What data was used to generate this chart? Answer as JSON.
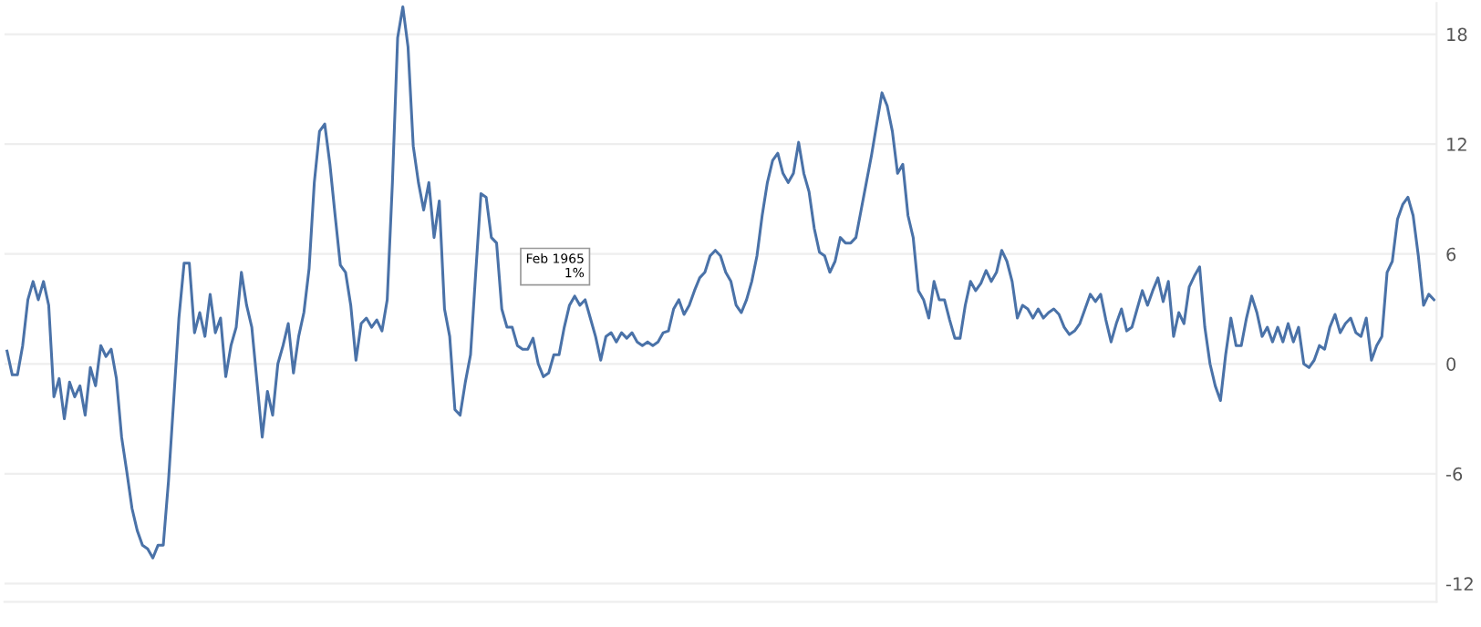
{
  "chart_data": {
    "type": "line",
    "categories": [
      null,
      null,
      null,
      null,
      null,
      null,
      null,
      null,
      null,
      null,
      null,
      null,
      null,
      null,
      null,
      null,
      null,
      null,
      null,
      null,
      null,
      null,
      null,
      null,
      null,
      null,
      null,
      null,
      null,
      null,
      null,
      null,
      null,
      null,
      null,
      null,
      null,
      null,
      null,
      null,
      null,
      null,
      null,
      null,
      null,
      null,
      null,
      null,
      null,
      null,
      null,
      null,
      null,
      null,
      null,
      null,
      null,
      null,
      null,
      null,
      null,
      null,
      null,
      null,
      null,
      null,
      null,
      null,
      null,
      null,
      null,
      null,
      null,
      null,
      null,
      null,
      null,
      null,
      null,
      null,
      null,
      null,
      null,
      null,
      null,
      null,
      null,
      null,
      null,
      null,
      null,
      null,
      null,
      null,
      null,
      null,
      null,
      null,
      null,
      null,
      null,
      null,
      null,
      null,
      null,
      null,
      null,
      null,
      null,
      null,
      null,
      null,
      null,
      null,
      null,
      null,
      null,
      null,
      null,
      null,
      null,
      null,
      null,
      null,
      null,
      null,
      null,
      null,
      null,
      null,
      null,
      null,
      null,
      null,
      null,
      null,
      null,
      null,
      null,
      null,
      null,
      null,
      null,
      null,
      null,
      null,
      null,
      null,
      null,
      null,
      null,
      null,
      null,
      null,
      null,
      null,
      null,
      null,
      null,
      null,
      null,
      null,
      null,
      null,
      null,
      null,
      null,
      null,
      null,
      null,
      null,
      null,
      null,
      null,
      null,
      null,
      null,
      null,
      null,
      null,
      null,
      null,
      null,
      null,
      null,
      null,
      null,
      null,
      null,
      null,
      null,
      null,
      null,
      null,
      null,
      null,
      null,
      null,
      null,
      null,
      null,
      null,
      null,
      null,
      null,
      null,
      null,
      null,
      null,
      null,
      null,
      null,
      null,
      null,
      null,
      null,
      null,
      null,
      null,
      null,
      null,
      null,
      null,
      null,
      null,
      null,
      null,
      null,
      null,
      null,
      null,
      null,
      null,
      null,
      null,
      null,
      null,
      null,
      null,
      null,
      null,
      null,
      null,
      null,
      null,
      null,
      null,
      null,
      null,
      null,
      null,
      null,
      null,
      null,
      null,
      null,
      null,
      null,
      null,
      null,
      null,
      null,
      null,
      null,
      null,
      null,
      null,
      null,
      null,
      null,
      null,
      null,
      null,
      null,
      null
    ],
    "series": [
      {
        "color": "#4a72a8",
        "values": [
          0.7,
          -0.6,
          -0.6,
          1.0,
          3.5,
          4.5,
          3.5,
          4.5,
          3.2,
          -1.8,
          -0.8,
          -3.0,
          -1.0,
          -1.8,
          -1.2,
          -2.8,
          -0.2,
          -1.2,
          1.0,
          0.4,
          0.8,
          -0.8,
          -4.0,
          -5.9,
          -7.9,
          -9.1,
          -9.9,
          -10.1,
          -10.6,
          -9.9,
          -9.9,
          -6.4,
          -2.0,
          2.5,
          5.5,
          5.5,
          1.7,
          2.8,
          1.5,
          3.8,
          1.7,
          2.5,
          -0.7,
          1.0,
          2.0,
          5.0,
          3.2,
          2.0,
          -1.0,
          -4.0,
          -1.5,
          -2.8,
          0.0,
          1.0,
          2.2,
          -0.5,
          1.5,
          2.8,
          5.2,
          9.9,
          12.7,
          13.1,
          10.9,
          8.1,
          5.4,
          5.0,
          3.2,
          0.2,
          2.2,
          2.5,
          2.0,
          2.4,
          1.8,
          3.5,
          9.9,
          17.8,
          19.5,
          17.3,
          11.9,
          9.9,
          8.4,
          9.9,
          6.9,
          8.9,
          3.0,
          1.5,
          -2.5,
          -2.8,
          -1.0,
          0.5,
          5.0,
          9.3,
          9.1,
          6.9,
          6.6,
          3.0,
          2.0,
          2.0,
          1.0,
          0.8,
          0.8,
          1.4,
          0.0,
          -0.7,
          -0.5,
          0.5,
          0.5,
          2.0,
          3.2,
          3.7,
          3.2,
          3.5,
          2.5,
          1.5,
          0.2,
          1.5,
          1.7,
          1.2,
          1.7,
          1.4,
          1.7,
          1.2,
          1.0,
          1.2,
          1.0,
          1.2,
          1.7,
          1.8,
          3.0,
          3.5,
          2.7,
          3.2,
          4.0,
          4.7,
          5.0,
          5.9,
          6.2,
          5.9,
          5.0,
          4.5,
          3.2,
          2.8,
          3.5,
          4.5,
          5.9,
          8.1,
          9.9,
          11.1,
          11.5,
          10.4,
          9.9,
          10.4,
          12.1,
          10.4,
          9.4,
          7.4,
          6.1,
          5.9,
          5.0,
          5.6,
          6.9,
          6.6,
          6.6,
          6.9,
          8.4,
          9.9,
          11.4,
          13.1,
          14.8,
          14.1,
          12.7,
          10.4,
          10.9,
          8.1,
          6.9,
          4.0,
          3.5,
          2.5,
          4.5,
          3.5,
          3.5,
          2.4,
          1.4,
          1.4,
          3.2,
          4.5,
          4.0,
          4.4,
          5.1,
          4.5,
          5.0,
          6.2,
          5.6,
          4.5,
          2.5,
          3.2,
          3.0,
          2.5,
          3.0,
          2.5,
          2.8,
          3.0,
          2.7,
          2.0,
          1.6,
          1.8,
          2.2,
          3.0,
          3.8,
          3.4,
          3.8,
          2.4,
          1.2,
          2.2,
          3.0,
          1.8,
          2.0,
          3.0,
          4.0,
          3.2,
          4.0,
          4.7,
          3.4,
          4.5,
          1.5,
          2.8,
          2.2,
          4.2,
          4.8,
          5.3,
          2.0,
          0.0,
          -1.2,
          -2.0,
          0.5,
          2.5,
          1.0,
          1.0,
          2.5,
          3.7,
          2.8,
          1.5,
          2.0,
          1.2,
          2.0,
          1.2,
          2.2,
          1.2,
          2.0,
          0.0,
          -0.2,
          0.2,
          1.0,
          0.8,
          2.0,
          2.7,
          1.7,
          2.2,
          2.5,
          1.7,
          1.5,
          2.5,
          0.2,
          1.0,
          1.5,
          5.0,
          5.6,
          7.9,
          8.7,
          9.1,
          8.1,
          5.9,
          3.2,
          3.8,
          3.5
        ]
      }
    ],
    "ylim": [
      -13,
      19.7
    ],
    "yticks": [
      -12,
      -6,
      0,
      6,
      12,
      18
    ],
    "grid": true,
    "line_style": "solid",
    "annotations": [
      "Feb 1965\n1%"
    ]
  }
}
